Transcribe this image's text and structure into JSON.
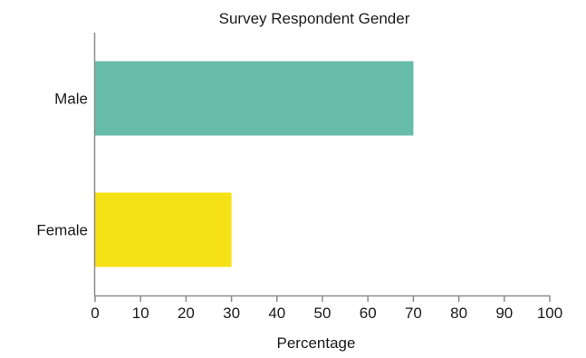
{
  "chart_data": {
    "type": "bar",
    "orientation": "horizontal",
    "title": "Survey Respondent Gender",
    "xlabel": "Percentage",
    "ylabel": "",
    "categories": [
      "Male",
      "Female"
    ],
    "values": [
      70,
      30
    ],
    "xlim": [
      0,
      100
    ],
    "xticks": [
      "0",
      "10",
      "20",
      "30",
      "40",
      "50",
      "60",
      "70",
      "80",
      "90",
      "100"
    ],
    "grid": false,
    "legend": "none",
    "colors": [
      "#66bba9",
      "#f6e016"
    ]
  }
}
